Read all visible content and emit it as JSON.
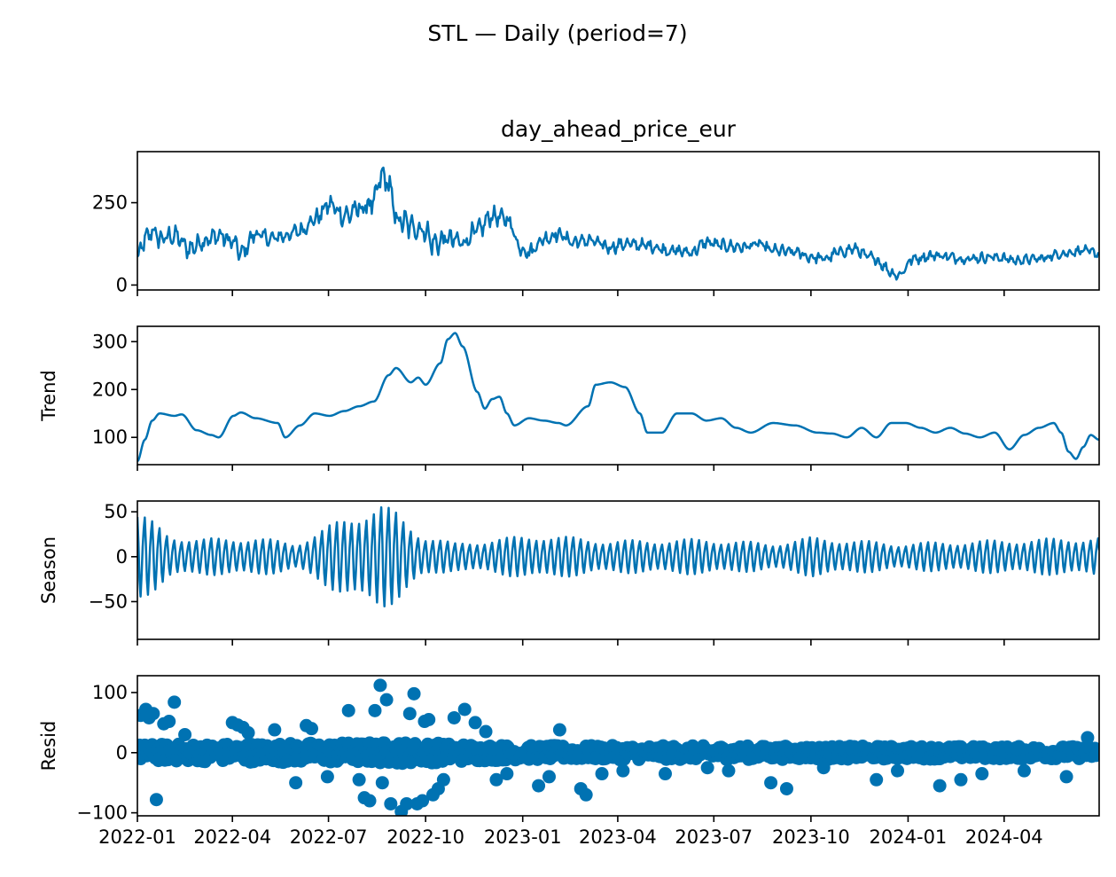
{
  "figure": {
    "suptitle": "STL — Daily (period=7)",
    "line_color": "#0072b2"
  },
  "chart_data": [
    {
      "type": "line",
      "panel": "observed",
      "title": "day_ahead_price_eur",
      "ylabel": "",
      "x_range": [
        "2022-01-01",
        "2024-06-30"
      ],
      "ylim": [
        -15,
        405
      ],
      "yticks": [
        0,
        250
      ],
      "keypoints": [
        [
          "2022-01-01",
          80
        ],
        [
          "2022-01-08",
          135
        ],
        [
          "2022-01-15",
          165
        ],
        [
          "2022-01-22",
          140
        ],
        [
          "2022-02-05",
          150
        ],
        [
          "2022-02-19",
          110
        ],
        [
          "2022-03-05",
          135
        ],
        [
          "2022-03-19",
          150
        ],
        [
          "2022-04-02",
          130
        ],
        [
          "2022-04-09",
          95
        ],
        [
          "2022-04-23",
          155
        ],
        [
          "2022-05-07",
          140
        ],
        [
          "2022-05-21",
          150
        ],
        [
          "2022-06-04",
          165
        ],
        [
          "2022-06-18",
          200
        ],
        [
          "2022-07-02",
          245
        ],
        [
          "2022-07-16",
          210
        ],
        [
          "2022-07-30",
          230
        ],
        [
          "2022-08-13",
          250
        ],
        [
          "2022-08-20",
          330
        ],
        [
          "2022-08-27",
          310
        ],
        [
          "2022-09-03",
          200
        ],
        [
          "2022-09-17",
          180
        ],
        [
          "2022-10-01",
          165
        ],
        [
          "2022-10-08",
          125
        ],
        [
          "2022-10-22",
          140
        ],
        [
          "2022-11-05",
          130
        ],
        [
          "2022-11-19",
          165
        ],
        [
          "2022-12-03",
          210
        ],
        [
          "2022-12-17",
          200
        ],
        [
          "2022-12-31",
          110
        ],
        [
          "2023-01-07",
          100
        ],
        [
          "2023-01-21",
          140
        ],
        [
          "2023-02-04",
          155
        ],
        [
          "2023-02-18",
          130
        ],
        [
          "2023-03-04",
          135
        ],
        [
          "2023-03-25",
          115
        ],
        [
          "2023-04-08",
          125
        ],
        [
          "2023-04-29",
          120
        ],
        [
          "2023-05-20",
          105
        ],
        [
          "2023-06-10",
          100
        ],
        [
          "2023-06-24",
          130
        ],
        [
          "2023-07-08",
          120
        ],
        [
          "2023-07-29",
          115
        ],
        [
          "2023-08-12",
          125
        ],
        [
          "2023-08-26",
          105
        ],
        [
          "2023-09-16",
          100
        ],
        [
          "2023-09-30",
          85
        ],
        [
          "2023-10-14",
          80
        ],
        [
          "2023-10-28",
          100
        ],
        [
          "2023-11-11",
          110
        ],
        [
          "2023-11-25",
          85
        ],
        [
          "2023-12-23",
          30
        ],
        [
          "2024-01-06",
          80
        ],
        [
          "2024-01-27",
          90
        ],
        [
          "2024-02-24",
          80
        ],
        [
          "2024-03-23",
          85
        ],
        [
          "2024-04-13",
          75
        ],
        [
          "2024-05-04",
          80
        ],
        [
          "2024-05-25",
          95
        ],
        [
          "2024-06-15",
          105
        ],
        [
          "2024-06-30",
          95
        ]
      ],
      "weekly_amplitude": [
        [
          0,
          35
        ],
        [
          150,
          25
        ],
        [
          230,
          45
        ],
        [
          260,
          45
        ],
        [
          360,
          25
        ],
        [
          500,
          20
        ],
        [
          700,
          18
        ],
        [
          912,
          15
        ]
      ]
    },
    {
      "type": "line",
      "panel": "trend",
      "ylabel": "Trend",
      "x_range": [
        "2022-01-01",
        "2024-06-30"
      ],
      "ylim": [
        43,
        332
      ],
      "yticks": [
        100,
        200,
        300
      ],
      "keypoints": [
        [
          "2022-01-01",
          50
        ],
        [
          "2022-01-08",
          95
        ],
        [
          "2022-01-15",
          135
        ],
        [
          "2022-01-22",
          150
        ],
        [
          "2022-02-05",
          145
        ],
        [
          "2022-02-12",
          148
        ],
        [
          "2022-02-26",
          115
        ],
        [
          "2022-03-12",
          105
        ],
        [
          "2022-03-19",
          100
        ],
        [
          "2022-04-02",
          145
        ],
        [
          "2022-04-09",
          152
        ],
        [
          "2022-04-23",
          140
        ],
        [
          "2022-05-14",
          130
        ],
        [
          "2022-05-21",
          100
        ],
        [
          "2022-06-04",
          125
        ],
        [
          "2022-06-18",
          150
        ],
        [
          "2022-07-02",
          145
        ],
        [
          "2022-07-16",
          155
        ],
        [
          "2022-07-30",
          165
        ],
        [
          "2022-08-13",
          175
        ],
        [
          "2022-08-27",
          230
        ],
        [
          "2022-09-03",
          245
        ],
        [
          "2022-09-17",
          215
        ],
        [
          "2022-09-24",
          225
        ],
        [
          "2022-10-01",
          210
        ],
        [
          "2022-10-15",
          255
        ],
        [
          "2022-10-22",
          305
        ],
        [
          "2022-10-29",
          318
        ],
        [
          "2022-11-05",
          290
        ],
        [
          "2022-11-19",
          195
        ],
        [
          "2022-11-26",
          160
        ],
        [
          "2022-12-03",
          180
        ],
        [
          "2022-12-10",
          185
        ],
        [
          "2022-12-17",
          150
        ],
        [
          "2022-12-24",
          125
        ],
        [
          "2023-01-07",
          140
        ],
        [
          "2023-01-21",
          135
        ],
        [
          "2023-02-04",
          130
        ],
        [
          "2023-02-11",
          125
        ],
        [
          "2023-03-04",
          165
        ],
        [
          "2023-03-11",
          210
        ],
        [
          "2023-03-25",
          215
        ],
        [
          "2023-04-08",
          205
        ],
        [
          "2023-04-22",
          150
        ],
        [
          "2023-04-29",
          110
        ],
        [
          "2023-05-13",
          110
        ],
        [
          "2023-05-27",
          150
        ],
        [
          "2023-06-10",
          150
        ],
        [
          "2023-06-24",
          135
        ],
        [
          "2023-07-08",
          140
        ],
        [
          "2023-07-22",
          120
        ],
        [
          "2023-08-05",
          110
        ],
        [
          "2023-08-26",
          130
        ],
        [
          "2023-09-16",
          125
        ],
        [
          "2023-10-07",
          110
        ],
        [
          "2023-10-21",
          108
        ],
        [
          "2023-11-04",
          100
        ],
        [
          "2023-11-18",
          120
        ],
        [
          "2023-12-02",
          100
        ],
        [
          "2023-12-16",
          130
        ],
        [
          "2023-12-30",
          130
        ],
        [
          "2024-01-13",
          120
        ],
        [
          "2024-01-27",
          110
        ],
        [
          "2024-02-10",
          120
        ],
        [
          "2024-02-24",
          108
        ],
        [
          "2024-03-09",
          100
        ],
        [
          "2024-03-23",
          110
        ],
        [
          "2024-04-06",
          75
        ],
        [
          "2024-04-20",
          105
        ],
        [
          "2024-05-04",
          120
        ],
        [
          "2024-05-18",
          130
        ],
        [
          "2024-05-25",
          110
        ],
        [
          "2024-06-01",
          70
        ],
        [
          "2024-06-08",
          55
        ],
        [
          "2024-06-15",
          80
        ],
        [
          "2024-06-22",
          105
        ],
        [
          "2024-06-30",
          95
        ]
      ]
    },
    {
      "type": "line",
      "panel": "season",
      "ylabel": "Season",
      "x_range": [
        "2022-01-01",
        "2024-06-30"
      ],
      "ylim": [
        -92,
        62
      ],
      "yticks": [
        -50,
        0,
        50
      ],
      "amplitude_profile": [
        [
          0,
          52
        ],
        [
          30,
          25
        ],
        [
          60,
          20
        ],
        [
          110,
          22
        ],
        [
          150,
          15
        ],
        [
          190,
          40
        ],
        [
          215,
          55
        ],
        [
          230,
          60
        ],
        [
          245,
          50
        ],
        [
          270,
          25
        ],
        [
          300,
          15
        ],
        [
          380,
          25
        ],
        [
          450,
          18
        ],
        [
          540,
          20
        ],
        [
          600,
          15
        ],
        [
          640,
          22
        ],
        [
          720,
          15
        ],
        [
          800,
          18
        ],
        [
          912,
          22
        ]
      ]
    },
    {
      "type": "scatter",
      "panel": "resid",
      "ylabel": "Resid",
      "x_range": [
        "2022-01-01",
        "2024-06-30"
      ],
      "ylim": [
        -105,
        128
      ],
      "yticks": [
        -100,
        0,
        100
      ],
      "outliers": [
        [
          3,
          62
        ],
        [
          8,
          72
        ],
        [
          11,
          58
        ],
        [
          15,
          65
        ],
        [
          18,
          -78
        ],
        [
          25,
          48
        ],
        [
          30,
          52
        ],
        [
          35,
          84
        ],
        [
          45,
          30
        ],
        [
          90,
          50
        ],
        [
          95,
          46
        ],
        [
          100,
          42
        ],
        [
          105,
          33
        ],
        [
          130,
          38
        ],
        [
          150,
          -50
        ],
        [
          160,
          45
        ],
        [
          165,
          40
        ],
        [
          180,
          -40
        ],
        [
          200,
          70
        ],
        [
          210,
          -45
        ],
        [
          215,
          -75
        ],
        [
          220,
          -80
        ],
        [
          225,
          70
        ],
        [
          230,
          112
        ],
        [
          232,
          -50
        ],
        [
          236,
          88
        ],
        [
          240,
          -85
        ],
        [
          250,
          -98
        ],
        [
          255,
          -85
        ],
        [
          258,
          65
        ],
        [
          262,
          98
        ],
        [
          265,
          -85
        ],
        [
          270,
          -80
        ],
        [
          272,
          52
        ],
        [
          276,
          55
        ],
        [
          280,
          -70
        ],
        [
          285,
          -60
        ],
        [
          290,
          -45
        ],
        [
          300,
          58
        ],
        [
          310,
          72
        ],
        [
          320,
          50
        ],
        [
          330,
          35
        ],
        [
          340,
          -45
        ],
        [
          350,
          -35
        ],
        [
          380,
          -55
        ],
        [
          390,
          -40
        ],
        [
          400,
          38
        ],
        [
          420,
          -60
        ],
        [
          425,
          -70
        ],
        [
          440,
          -35
        ],
        [
          460,
          -30
        ],
        [
          500,
          -35
        ],
        [
          540,
          -25
        ],
        [
          560,
          -30
        ],
        [
          600,
          -50
        ],
        [
          615,
          -60
        ],
        [
          650,
          -25
        ],
        [
          700,
          -45
        ],
        [
          720,
          -30
        ],
        [
          760,
          -55
        ],
        [
          780,
          -45
        ],
        [
          800,
          -35
        ],
        [
          840,
          -30
        ],
        [
          880,
          -40
        ],
        [
          900,
          25
        ]
      ]
    }
  ],
  "x_axis": {
    "ticks": [
      "2022-01",
      "2022-04",
      "2022-07",
      "2022-10",
      "2023-01",
      "2023-04",
      "2023-07",
      "2023-10",
      "2024-01",
      "2024-04"
    ],
    "tick_dates": [
      "2022-01-01",
      "2022-04-01",
      "2022-07-01",
      "2022-10-01",
      "2023-01-01",
      "2023-04-01",
      "2023-07-01",
      "2023-10-01",
      "2024-01-01",
      "2024-04-01"
    ]
  }
}
